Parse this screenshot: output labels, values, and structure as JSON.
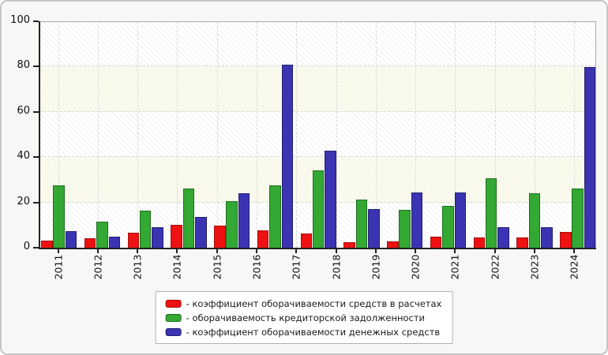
{
  "page": {
    "background": "#f7f7f5",
    "frame_border_color": "#c5c5c5"
  },
  "chart_data": {
    "type": "bar",
    "title": "",
    "xlabel": "",
    "ylabel": "",
    "categories": [
      "2011",
      "2012",
      "2013",
      "2014",
      "2015",
      "2016",
      "2017",
      "2018",
      "2019",
      "2020",
      "2021",
      "2022",
      "2023",
      "2024"
    ],
    "bar_group_count": 13,
    "layout_note": "13 grouped bars are drawn evenly across the plot while 14 year ticks are drawn evenly, so groups drift right of their ticks toward mid-chart; first group aligns with 2011, last group aligns with 2024",
    "series": [
      {
        "name": "коэффициент оборачиваемости средств в расчетах",
        "color": "#ee1111",
        "border_color": "#a50d0d",
        "values": [
          3.0,
          4.1,
          6.5,
          10.0,
          9.9,
          7.5,
          6.4,
          2.6,
          2.9,
          5.0,
          4.7,
          4.4,
          7.1
        ]
      },
      {
        "name": "оборачиваемость кредиторской задолженности",
        "color": "#33a833",
        "border_color": "#1e6e1e",
        "values": [
          27.5,
          11.4,
          16.4,
          26.2,
          20.4,
          27.5,
          34.2,
          21.4,
          16.6,
          18.3,
          30.5,
          24.2,
          26.2
        ]
      },
      {
        "name": "коэффициент оборачиваемости денежных средств",
        "color": "#3a34b2",
        "border_color": "#242070",
        "values": [
          7.2,
          5.0,
          9.0,
          13.6,
          24.0,
          81.0,
          42.8,
          17.0,
          24.5,
          24.4,
          9.0,
          9.0,
          79.7
        ]
      }
    ],
    "ylim": [
      0,
      100
    ],
    "yticks": [
      0,
      20,
      40,
      60,
      80,
      100
    ],
    "grid": "dashed horizontal at 20/40/60/80 and dashed vertical at each year tick",
    "plot_bands": [
      [
        20,
        40
      ],
      [
        60,
        80
      ]
    ],
    "legend_position": "bottom-center"
  },
  "legend": {
    "prefix": "- ",
    "items": [
      "- коэффициент оборачиваемости средств в расчетах",
      "- оборачиваемость кредиторской задолженности",
      "- коэффициент оборачиваемости денежных средств"
    ]
  }
}
